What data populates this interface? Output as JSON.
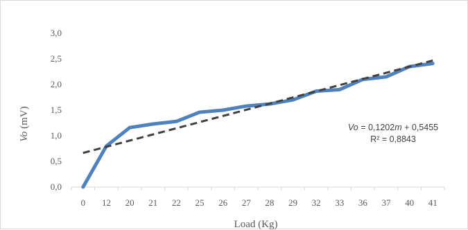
{
  "chart_data": {
    "type": "line",
    "categories": [
      "0",
      "12",
      "20",
      "21",
      "22",
      "25",
      "26",
      "27",
      "28",
      "29",
      "32",
      "33",
      "36",
      "37",
      "40",
      "41"
    ],
    "series": [
      {
        "values": [
          0.0,
          0.8,
          1.16,
          1.23,
          1.28,
          1.46,
          1.5,
          1.58,
          1.62,
          1.7,
          1.87,
          1.9,
          2.1,
          2.15,
          2.35,
          2.41
        ],
        "color": "#4f81bd"
      }
    ],
    "trendline": {
      "type": "linear",
      "slope": 0.1202,
      "intercept": 0.5455,
      "r2": 0.8843,
      "color": "#404040",
      "style": "dashed"
    },
    "title": "",
    "xlabel": "Load (Kg)",
    "ylabel_italic": "Vo",
    "ylabel_unit": " (mV)",
    "ylim": [
      0,
      3.0
    ],
    "yticks": [
      "0,0",
      "0,5",
      "1,0",
      "1,5",
      "2,0",
      "2,5",
      "3,0"
    ],
    "grid": false,
    "legend": "none",
    "annotation": {
      "eq_var": "Vo",
      "eq_mid": " = 0,1202",
      "eq_m": "m",
      "eq_end": " + 0,5455",
      "r2": "R² = 0,8843"
    }
  }
}
